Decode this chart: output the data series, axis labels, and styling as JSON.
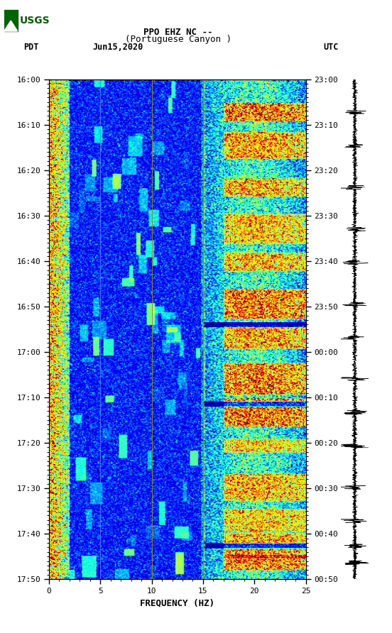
{
  "title_line1": "PPO EHZ NC --",
  "title_line2": "(Portuguese Canyon )",
  "date_label": "Jun15,2020",
  "left_tz": "PDT",
  "right_tz": "UTC",
  "left_times": [
    "16:00",
    "16:10",
    "16:20",
    "16:30",
    "16:40",
    "16:50",
    "17:00",
    "17:10",
    "17:20",
    "17:30",
    "17:40",
    "17:50"
  ],
  "right_times": [
    "23:00",
    "23:10",
    "23:20",
    "23:30",
    "23:40",
    "23:50",
    "00:00",
    "00:10",
    "00:20",
    "00:30",
    "00:40",
    "00:50"
  ],
  "freq_min": 0,
  "freq_max": 25,
  "freq_ticks": [
    0,
    5,
    10,
    15,
    20,
    25
  ],
  "freq_label": "FREQUENCY (HZ)",
  "vertical_lines_freq": [
    5,
    10,
    15
  ],
  "figsize": [
    5.52,
    8.92
  ],
  "dpi": 100,
  "bg_color": "white",
  "usgs_color": "#006400",
  "vline_color": "#888833",
  "n_time": 600,
  "n_freq": 250,
  "event_times": [
    40,
    80,
    130,
    180,
    220,
    270,
    310,
    360,
    400,
    440,
    490,
    530,
    560,
    580
  ],
  "dark_band_times": [
    295,
    390,
    560
  ]
}
